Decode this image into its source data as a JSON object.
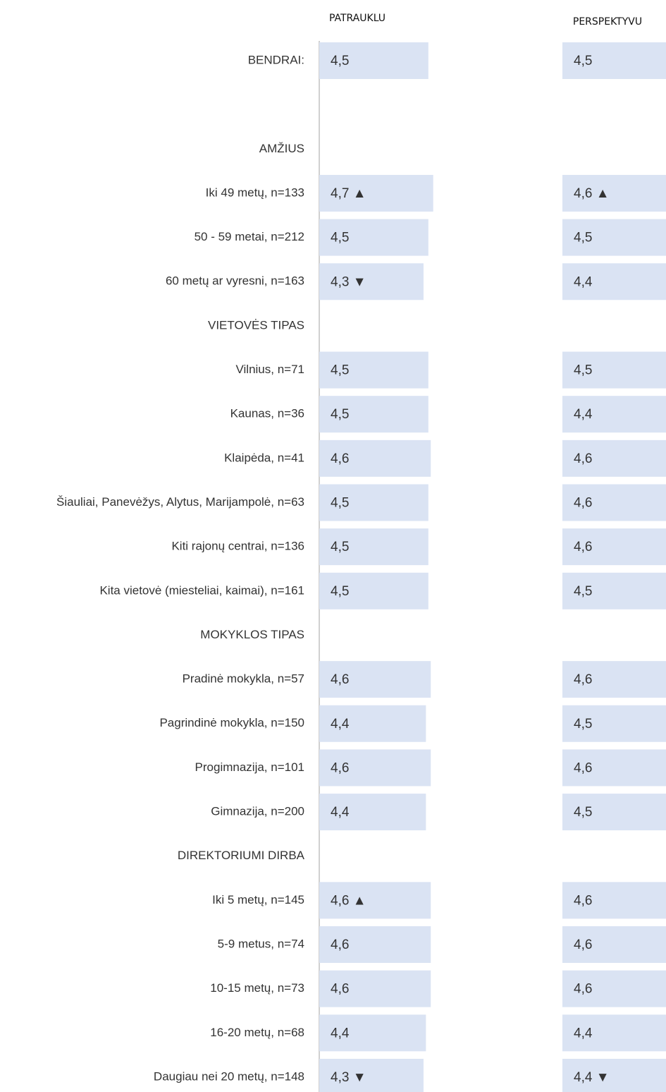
{
  "chart_data": {
    "type": "bar",
    "orientation": "horizontal",
    "categories": [
      "BENDRAI:",
      null,
      "AMŽIUS",
      "Iki 49 metų, n=133",
      "50 - 59 metai, n=212",
      "60 metų ar vyresni, n=163",
      "VIETOVĖS TIPAS",
      "Vilnius, n=71",
      "Kaunas, n=36",
      "Klaipėda, n=41",
      "Šiauliai, Panevėžys, Alytus, Marijampolė, n=63",
      "Kiti rajonų centrai, n=136",
      "Kita vietovė (miesteliai, kaimai), n=161",
      "MOKYKLOS TIPAS",
      "Pradinė mokykla, n=57",
      "Pagrindinė mokykla, n=150",
      "Progimnazija, n=101",
      "Gimnazija, n=200",
      "DIREKTORIUMI DIRBA",
      "Iki 5 metų, n=145",
      "5-9 metus, n=74",
      "10-15 metų, n=73",
      "16-20 metų, n=68",
      "Daugiau nei 20 metų, n=148"
    ],
    "series": [
      {
        "name": "PATRAUKLU",
        "color": "#dae3f3",
        "values": [
          4.5,
          null,
          null,
          4.7,
          4.5,
          4.3,
          null,
          4.5,
          4.5,
          4.6,
          4.5,
          4.5,
          4.5,
          null,
          4.6,
          4.4,
          4.6,
          4.4,
          null,
          4.6,
          4.6,
          4.6,
          4.4,
          4.3
        ],
        "value_labels": [
          "4,5",
          null,
          null,
          "4,7 ▲",
          "4,5",
          "4,3 ▼",
          null,
          "4,5",
          "4,5",
          "4,6",
          "4,5",
          "4,5",
          "4,5",
          null,
          "4,6",
          "4,4",
          "4,6",
          "4,4",
          null,
          "4,6 ▲",
          "4,6",
          "4,6",
          "4,4",
          "4,3 ▼"
        ]
      },
      {
        "name": "PERSPEKTYVU",
        "color": "#dae3f3",
        "values": [
          4.5,
          null,
          null,
          4.6,
          4.5,
          4.4,
          null,
          4.5,
          4.4,
          4.6,
          4.6,
          4.6,
          4.5,
          null,
          4.6,
          4.5,
          4.6,
          4.5,
          null,
          4.6,
          4.6,
          4.6,
          4.4,
          4.4
        ],
        "value_labels": [
          "4,5",
          null,
          null,
          "4,6 ▲",
          "4,5",
          "4,4",
          null,
          "4,5",
          "4,4",
          "4,6",
          "4,6",
          "4,6",
          "4,5",
          null,
          "4,6",
          "4,5",
          "4,6",
          "4,5",
          null,
          "4,6",
          "4,6",
          "4,6",
          "4,4",
          "4,4 ▼"
        ]
      }
    ]
  }
}
